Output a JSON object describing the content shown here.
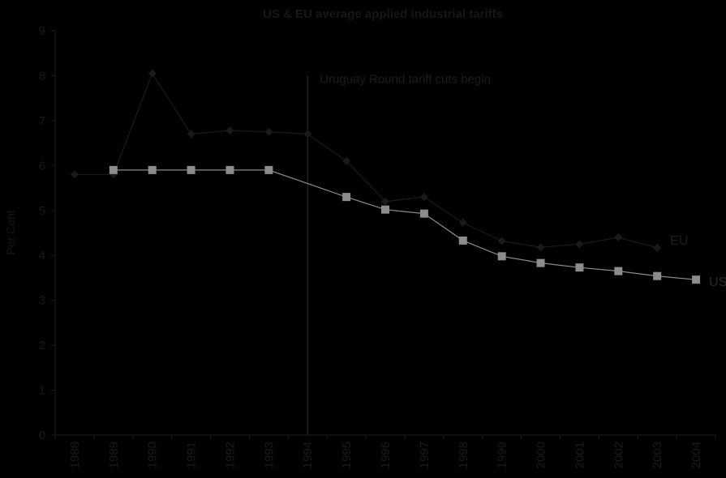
{
  "chart_data": {
    "type": "line",
    "title": "US & EU average applied industrial tariffs",
    "ylabel": "Per Cent",
    "xlabel": "",
    "categories": [
      "1988",
      "1989",
      "1990",
      "1991",
      "1992",
      "1993",
      "1994",
      "1995",
      "1996",
      "1997",
      "1998",
      "1999",
      "2000",
      "2001",
      "2002",
      "2003",
      "2004"
    ],
    "yticks": [
      "0",
      "1",
      "2",
      "3",
      "4",
      "5",
      "6",
      "7",
      "8",
      "9"
    ],
    "ylim": [
      0,
      9
    ],
    "grid": false,
    "legend": "none",
    "series": [
      {
        "name": "EU",
        "marker": "diamond",
        "color": "#1a1a1a",
        "values": [
          5.8,
          5.8,
          8.05,
          6.7,
          6.78,
          6.75,
          6.7,
          6.1,
          5.2,
          5.3,
          4.73,
          4.32,
          4.18,
          4.25,
          4.4,
          4.17,
          null
        ]
      },
      {
        "name": "US",
        "marker": "square",
        "color": "#8c8c8c",
        "values": [
          null,
          5.9,
          5.9,
          5.9,
          5.9,
          5.9,
          null,
          5.3,
          5.02,
          4.93,
          4.33,
          3.98,
          3.83,
          3.73,
          3.65,
          3.54,
          3.46
        ]
      }
    ],
    "annotations": [
      {
        "text": "Uruguay Round tariff cuts begin",
        "x": "1994",
        "y_top": 8
      }
    ]
  }
}
